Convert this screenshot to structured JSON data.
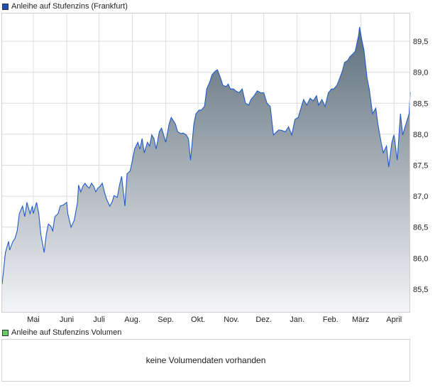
{
  "chart_data": {
    "type": "area",
    "title": "Anleihe auf Stufenzins (Frankfurt)",
    "legend_color": "#1f4fb0",
    "line_color": "#1f5bc9",
    "fill_gradient": [
      "#5d6e7b",
      "#f4f5f7"
    ],
    "grid": true,
    "legend_placement": "top-left",
    "ylim": [
      85.12,
      89.96
    ],
    "y_ticks": [
      "85,5",
      "86,0",
      "86,5",
      "87,0",
      "87,5",
      "88,0",
      "88,5",
      "89,0",
      "89,5"
    ],
    "y_tick_values": [
      85.5,
      86.0,
      86.5,
      87.0,
      87.5,
      88.0,
      88.5,
      89.0,
      89.5
    ],
    "x_ticks": [
      "Mai",
      "Juni",
      "Juli",
      "Aug.",
      "Sep.",
      "Okt.",
      "Nov.",
      "Dez.",
      "Jan.",
      "Feb.",
      "März",
      "April"
    ],
    "x_tick_dates": [
      "01.05.",
      "01.06.",
      "01.07.",
      "01.08.",
      "01.09.",
      "01.10.",
      "01.11.",
      "01.12.",
      "01.01.",
      "01.02.",
      "01.03.",
      "01.04."
    ],
    "x_range": [
      "02.04.",
      "16.04."
    ],
    "series": [
      {
        "x": [
          "02.04.",
          "05.04.",
          "08.04.",
          "09.04.",
          "12.04.",
          "14.04.",
          "16.04.",
          "18.04.",
          "21.04.",
          "23.04.",
          "25.04.",
          "28.04.",
          "30.04.",
          "01.05.",
          "04.05.",
          "06.05.",
          "08.05.",
          "11.05.",
          "13.05.",
          "15.05.",
          "17.05.",
          "19.05.",
          "21.05.",
          "24.05.",
          "26.05.",
          "29.05.",
          "01.06.",
          "02.06.",
          "05.06.",
          "08.06.",
          "11.06.",
          "12.06.",
          "14.06.",
          "16.06.",
          "18.06.",
          "20.06.",
          "22.06.",
          "24.06.",
          "26.06.",
          "28.06.",
          "30.06.",
          "02.07.",
          "04.07.",
          "06.07.",
          "08.07.",
          "11.07.",
          "13.07.",
          "15.07.",
          "18.07.",
          "20.07.",
          "22.07.",
          "24.07.",
          "25.07.",
          "27.07.",
          "30.07.",
          "01.08.",
          "03.08.",
          "06.08.",
          "08.08.",
          "10.08.",
          "12.08.",
          "15.08.",
          "17.08.",
          "19.08.",
          "21.08.",
          "23.08.",
          "26.08.",
          "28.08.",
          "30.08.",
          "01.09.",
          "04.09.",
          "06.09.",
          "08.09.",
          "10.09.",
          "12.09.",
          "15.09.",
          "17.09.",
          "20.09.",
          "22.09.",
          "24.09.",
          "27.09.",
          "29.09.",
          "02.10.",
          "04.10.",
          "07.10.",
          "09.10.",
          "12.10.",
          "14.10.",
          "17.10.",
          "19.10.",
          "22.10.",
          "24.10.",
          "27.10.",
          "29.10.",
          "31.10.",
          "03.11.",
          "05.11.",
          "08.11.",
          "11.11.",
          "14.11.",
          "17.11.",
          "19.11.",
          "22.11.",
          "25.11.",
          "28.11.",
          "01.12.",
          "04.12.",
          "07.12.",
          "10.12.",
          "13.12.",
          "15.12.",
          "18.12.",
          "21.12.",
          "24.12.",
          "27.12.",
          "30.12.",
          "02.01.",
          "05.01.",
          "07.01.",
          "10.01.",
          "13.01.",
          "16.01.",
          "19.01.",
          "21.01.",
          "24.01.",
          "27.01.",
          "30.01.",
          "02.02.",
          "04.02.",
          "07.02.",
          "09.02.",
          "12.02.",
          "14.02.",
          "17.02.",
          "19.02.",
          "22.02.",
          "24.02.",
          "27.02.",
          "28.02.",
          "02.03.",
          "04.03.",
          "07.03.",
          "09.03.",
          "12.03.",
          "15.03.",
          "17.03.",
          "20.03.",
          "22.03.",
          "25.03.",
          "27.03.",
          "30.03.",
          "01.04.",
          "04.04.",
          "07.04.",
          "09.04.",
          "12.04.",
          "15.04.",
          "16.04."
        ],
        "values": [
          85.58,
          86.09,
          86.27,
          86.13,
          86.27,
          86.32,
          86.44,
          86.72,
          86.84,
          86.67,
          86.9,
          86.72,
          86.84,
          86.72,
          86.9,
          86.72,
          86.38,
          86.09,
          86.38,
          86.55,
          86.52,
          86.44,
          86.67,
          86.72,
          86.84,
          86.86,
          86.9,
          86.72,
          86.5,
          86.61,
          86.9,
          87.18,
          87.07,
          87.16,
          87.21,
          87.16,
          87.13,
          87.21,
          87.16,
          87.07,
          87.13,
          87.16,
          87.21,
          87.07,
          86.95,
          86.84,
          86.9,
          87.01,
          86.98,
          87.18,
          87.32,
          87.01,
          86.84,
          87.36,
          87.41,
          87.58,
          87.76,
          87.87,
          87.76,
          87.93,
          87.7,
          87.87,
          87.81,
          87.99,
          87.93,
          87.76,
          88.04,
          88.1,
          87.99,
          87.87,
          88.16,
          88.27,
          88.22,
          88.16,
          88.04,
          88.01,
          88.02,
          87.99,
          87.93,
          87.58,
          88.16,
          88.33,
          88.39,
          88.39,
          88.45,
          88.73,
          88.85,
          88.96,
          89.02,
          89.04,
          88.9,
          88.79,
          88.77,
          88.81,
          88.73,
          88.73,
          88.7,
          88.67,
          88.73,
          88.5,
          88.47,
          88.56,
          88.62,
          88.7,
          88.67,
          88.67,
          88.5,
          88.45,
          87.99,
          88.04,
          88.07,
          88.06,
          88.04,
          88.12,
          87.99,
          88.24,
          88.27,
          88.45,
          88.56,
          88.47,
          88.58,
          88.54,
          88.62,
          88.47,
          88.56,
          88.45,
          88.67,
          88.73,
          88.73,
          88.79,
          88.88,
          89.02,
          89.16,
          89.19,
          89.25,
          89.3,
          89.34,
          89.59,
          89.73,
          89.53,
          89.36,
          88.9,
          88.73,
          88.33,
          88.42,
          88.16,
          87.87,
          87.7,
          87.81,
          87.47,
          87.87,
          87.99,
          87.58,
          88.33,
          87.99,
          88.16,
          88.33,
          88.68
        ]
      }
    ]
  },
  "volume": {
    "legend": "Anleihe auf Stufenzins Volumen",
    "legend_color": "#66cc66",
    "message": "keine Volumendaten vorhanden"
  }
}
